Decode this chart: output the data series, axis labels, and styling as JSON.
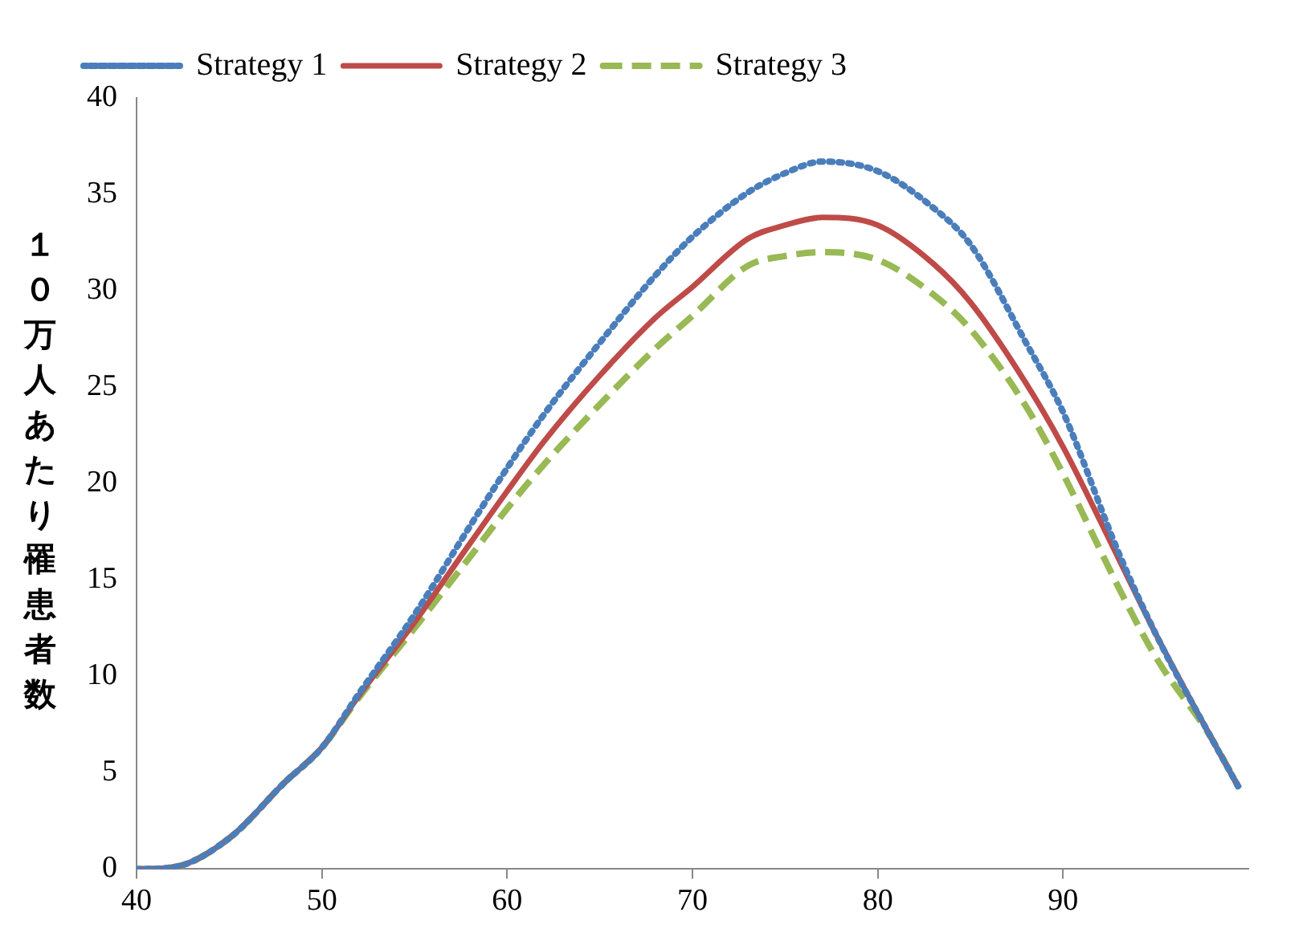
{
  "chart_data": {
    "type": "line",
    "ylabel": "１０万人あたり罹患者数",
    "x": [
      40,
      42,
      45,
      48,
      50,
      52,
      55,
      58,
      60,
      62,
      65,
      68,
      70,
      73,
      75,
      77,
      80,
      83,
      85,
      88,
      90,
      93,
      95,
      98,
      99.5
    ],
    "series": [
      {
        "name": "Strategy 1",
        "color": "#4a7ebb",
        "line_style": "dotted",
        "values": [
          0,
          0.1,
          1.6,
          4.5,
          6.3,
          9.1,
          13.2,
          17.8,
          20.8,
          23.6,
          27.3,
          30.8,
          32.8,
          35.1,
          36.1,
          36.7,
          36.2,
          34.3,
          32.4,
          27.3,
          23.7,
          16.4,
          12.2,
          6.8,
          4.2
        ]
      },
      {
        "name": "Strategy 2",
        "color": "#be4b48",
        "line_style": "solid",
        "values": [
          0,
          0.1,
          1.6,
          4.5,
          6.3,
          9.0,
          12.8,
          16.9,
          19.6,
          22.2,
          25.6,
          28.6,
          30.2,
          32.7,
          33.4,
          33.8,
          33.4,
          31.4,
          29.4,
          25.2,
          21.9,
          16.1,
          12.2,
          6.8,
          4.2
        ]
      },
      {
        "name": "Strategy 3",
        "color": "#98b954",
        "line_style": "dashed",
        "values": [
          0,
          0.1,
          1.6,
          4.5,
          6.3,
          8.9,
          12.5,
          16.2,
          18.7,
          21.0,
          24.1,
          27.0,
          28.7,
          31.3,
          31.8,
          32.0,
          31.6,
          29.8,
          28.0,
          24.0,
          20.5,
          14.6,
          11.0,
          6.8,
          4.2
        ]
      }
    ],
    "xlim": [
      40,
      100
    ],
    "xticks": [
      40,
      50,
      60,
      70,
      80,
      90
    ],
    "ylim": [
      0,
      40
    ],
    "yticks": [
      0,
      5,
      10,
      15,
      20,
      25,
      30,
      35,
      40
    ],
    "grid": false,
    "legend": "top left",
    "marker": "none"
  }
}
